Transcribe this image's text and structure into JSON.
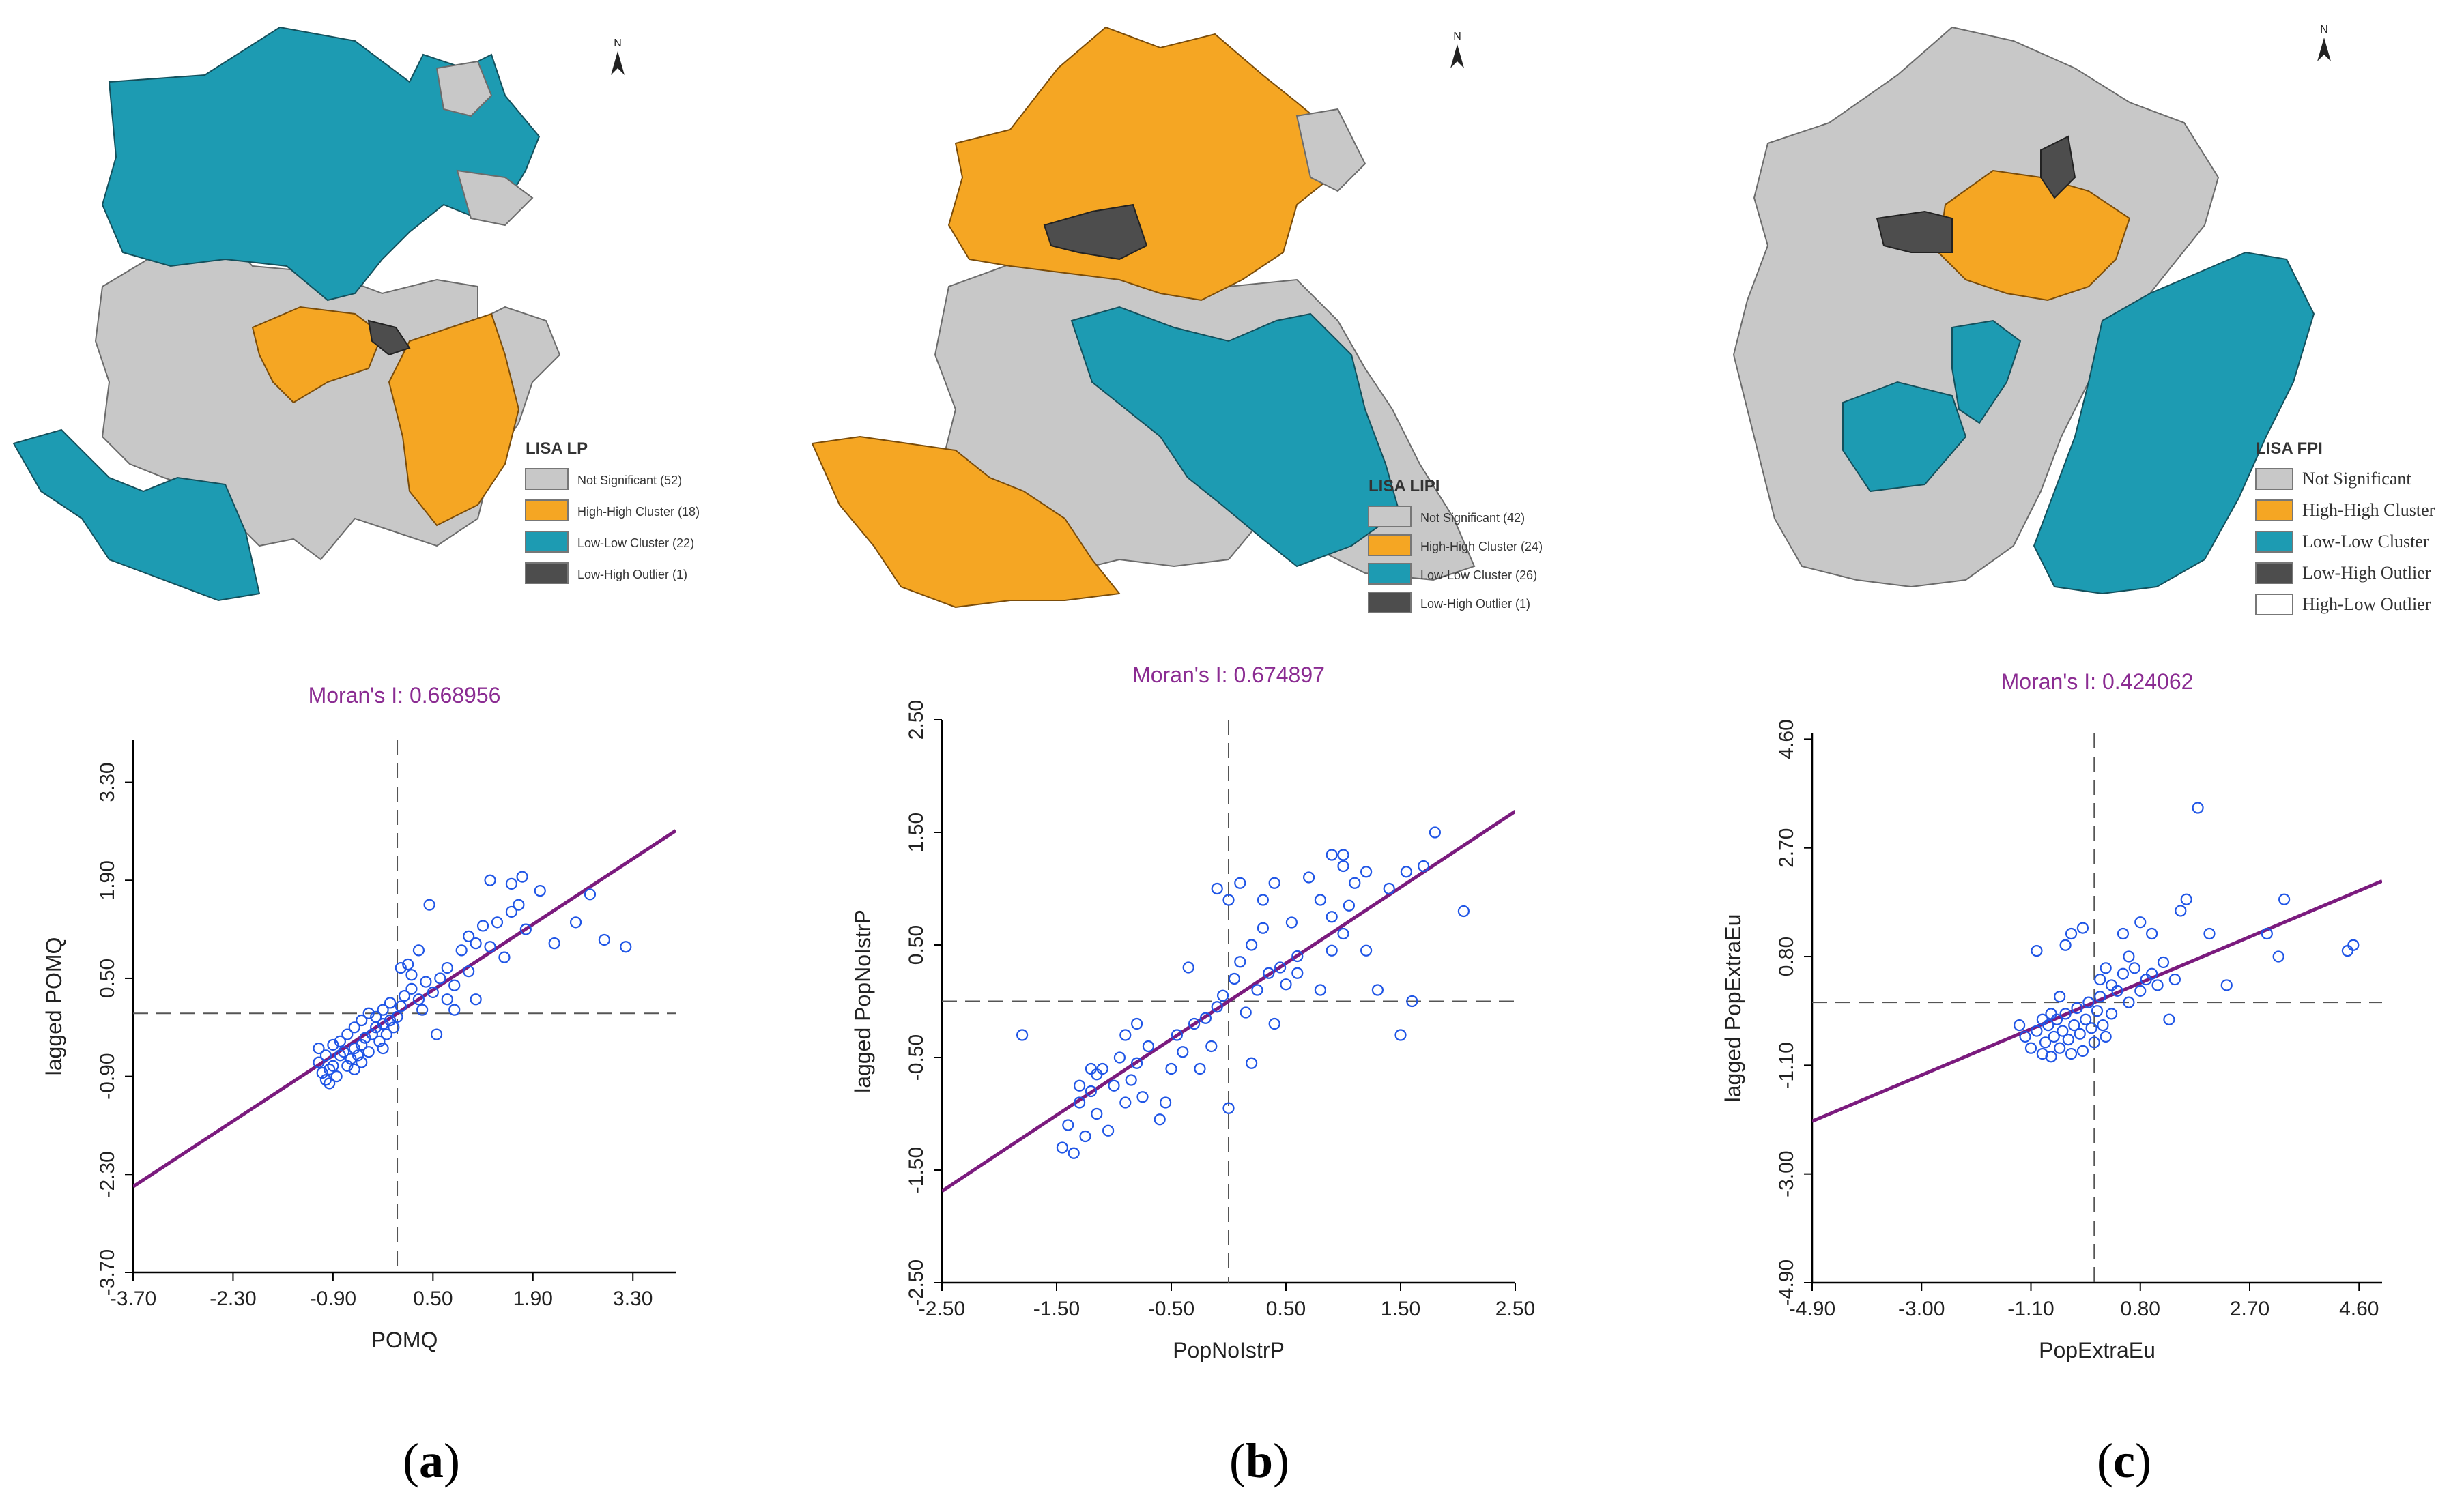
{
  "colors": {
    "not_significant": "#c8c8c8",
    "high_high": "#f5a623",
    "low_low": "#1d9bb2",
    "low_high": "#4d4d4d",
    "high_low": "#ffffff",
    "regression": "#7b1b7e",
    "points": "#1f55e6",
    "moran_text": "#8b2c92"
  },
  "panels": [
    {
      "label": "a",
      "map": {
        "legend_title": "LISA LP",
        "legend_items": [
          {
            "label": "Not Significant (52)",
            "color": "#c8c8c8"
          },
          {
            "label": "High-High Cluster (18)",
            "color": "#f5a623"
          },
          {
            "label": "Low-Low Cluster (22)",
            "color": "#1d9bb2"
          },
          {
            "label": "Low-High Outlier (1)",
            "color": "#4d4d4d"
          }
        ],
        "north": "N"
      },
      "chart_data": {
        "type": "scatter",
        "title": "Moran's I: 0.668956",
        "xlabel": "POMQ",
        "ylabel": "lagged POMQ",
        "xlim": [
          -3.7,
          3.9
        ],
        "ylim": [
          -3.7,
          3.9
        ],
        "xticks": [
          "-3.70",
          "-2.30",
          "-0.90",
          "0.50",
          "1.90",
          "3.30"
        ],
        "yticks": [
          "-3.70",
          "-2.30",
          "-0.90",
          "0.50",
          "1.90",
          "3.30"
        ],
        "slope": 0.668956,
        "points": [
          [
            -1.1,
            -0.7
          ],
          [
            -1.05,
            -0.85
          ],
          [
            -1.0,
            -0.95
          ],
          [
            -0.95,
            -0.8
          ],
          [
            -0.9,
            -0.75
          ],
          [
            -0.85,
            -0.9
          ],
          [
            -0.8,
            -0.6
          ],
          [
            -0.75,
            -0.55
          ],
          [
            -0.7,
            -0.75
          ],
          [
            -0.65,
            -0.65
          ],
          [
            -0.6,
            -0.5
          ],
          [
            -0.55,
            -0.6
          ],
          [
            -0.5,
            -0.45
          ],
          [
            -0.45,
            -0.35
          ],
          [
            -0.4,
            -0.55
          ],
          [
            -0.35,
            -0.3
          ],
          [
            -0.3,
            -0.2
          ],
          [
            -0.25,
            -0.4
          ],
          [
            -0.2,
            -0.15
          ],
          [
            -0.15,
            -0.3
          ],
          [
            -0.1,
            -0.1
          ],
          [
            -0.05,
            -0.2
          ],
          [
            0.0,
            -0.05
          ],
          [
            -1.0,
            -0.6
          ],
          [
            -0.9,
            -0.45
          ],
          [
            -0.7,
            -0.3
          ],
          [
            -0.6,
            -0.2
          ],
          [
            -0.5,
            -0.1
          ],
          [
            -0.4,
            0.0
          ],
          [
            -0.3,
            -0.05
          ],
          [
            -0.2,
            0.05
          ],
          [
            -0.1,
            0.15
          ],
          [
            0.05,
            0.1
          ],
          [
            0.1,
            0.25
          ],
          [
            0.2,
            0.35
          ],
          [
            0.3,
            0.2
          ],
          [
            0.4,
            0.45
          ],
          [
            0.5,
            0.3
          ],
          [
            0.6,
            0.5
          ],
          [
            0.7,
            0.65
          ],
          [
            0.8,
            0.4
          ],
          [
            0.9,
            0.9
          ],
          [
            1.0,
            1.1
          ],
          [
            1.1,
            1.0
          ],
          [
            1.2,
            1.25
          ],
          [
            1.3,
            0.95
          ],
          [
            1.4,
            1.3
          ],
          [
            1.5,
            0.8
          ],
          [
            1.6,
            1.45
          ],
          [
            1.7,
            1.55
          ],
          [
            1.8,
            1.2
          ],
          [
            2.0,
            1.75
          ],
          [
            2.2,
            1.0
          ],
          [
            2.5,
            1.3
          ],
          [
            2.9,
            1.05
          ],
          [
            3.2,
            0.95
          ],
          [
            0.55,
            -0.3
          ],
          [
            0.8,
            0.05
          ],
          [
            1.1,
            0.2
          ],
          [
            0.3,
            0.9
          ],
          [
            0.15,
            0.7
          ],
          [
            0.45,
            1.55
          ],
          [
            1.3,
            1.9
          ],
          [
            1.6,
            1.85
          ],
          [
            1.75,
            1.95
          ],
          [
            2.7,
            1.7
          ],
          [
            -0.8,
            -0.4
          ],
          [
            -1.1,
            -0.5
          ],
          [
            -0.6,
            -0.8
          ],
          [
            -0.2,
            -0.5
          ],
          [
            0.2,
            0.55
          ],
          [
            0.05,
            0.65
          ],
          [
            -0.95,
            -1.0
          ],
          [
            -0.5,
            -0.7
          ],
          [
            0.7,
            0.2
          ],
          [
            1.0,
            0.6
          ],
          [
            0.35,
            0.05
          ]
        ]
      }
    },
    {
      "label": "b",
      "map": {
        "legend_title": "LISA LIPI",
        "legend_items": [
          {
            "label": "Not Significant (42)",
            "color": "#c8c8c8"
          },
          {
            "label": "High-High Cluster (24)",
            "color": "#f5a623"
          },
          {
            "label": "Low-Low Cluster (26)",
            "color": "#1d9bb2"
          },
          {
            "label": "Low-High Outlier (1)",
            "color": "#4d4d4d"
          }
        ],
        "north": "N"
      },
      "chart_data": {
        "type": "scatter",
        "title": "Moran's I: 0.674897",
        "xlabel": "PopNoIstrP",
        "ylabel": "lagged PopNoIstrP",
        "xlim": [
          -2.5,
          2.5
        ],
        "ylim": [
          -2.5,
          2.5
        ],
        "xticks": [
          "-2.50",
          "-1.50",
          "-0.50",
          "0.50",
          "1.50",
          "2.50"
        ],
        "yticks": [
          "-2.50",
          "-1.50",
          "-0.50",
          "0.50",
          "1.50",
          "2.50"
        ],
        "slope": 0.674897,
        "points": [
          [
            -1.8,
            -0.3
          ],
          [
            -1.45,
            -1.3
          ],
          [
            -1.4,
            -1.1
          ],
          [
            -1.35,
            -1.35
          ],
          [
            -1.3,
            -0.9
          ],
          [
            -1.25,
            -1.2
          ],
          [
            -1.2,
            -0.8
          ],
          [
            -1.15,
            -1.0
          ],
          [
            -1.1,
            -0.6
          ],
          [
            -1.05,
            -1.15
          ],
          [
            -1.0,
            -0.75
          ],
          [
            -0.95,
            -0.5
          ],
          [
            -0.9,
            -0.9
          ],
          [
            -0.85,
            -0.7
          ],
          [
            -0.8,
            -0.55
          ],
          [
            -0.75,
            -0.85
          ],
          [
            -0.7,
            -0.4
          ],
          [
            -0.6,
            -1.05
          ],
          [
            -0.55,
            -0.9
          ],
          [
            -0.5,
            -0.6
          ],
          [
            -0.45,
            -0.3
          ],
          [
            -0.4,
            -0.45
          ],
          [
            -0.35,
            0.3
          ],
          [
            -0.3,
            -0.2
          ],
          [
            -0.25,
            -0.6
          ],
          [
            -0.2,
            -0.15
          ],
          [
            -0.15,
            -0.4
          ],
          [
            -0.1,
            -0.05
          ],
          [
            -0.05,
            0.05
          ],
          [
            0.0,
            -0.95
          ],
          [
            0.05,
            0.2
          ],
          [
            0.1,
            0.35
          ],
          [
            0.15,
            -0.1
          ],
          [
            0.2,
            0.5
          ],
          [
            0.25,
            0.1
          ],
          [
            0.3,
            0.65
          ],
          [
            0.35,
            0.25
          ],
          [
            0.4,
            -0.2
          ],
          [
            0.45,
            0.3
          ],
          [
            0.5,
            0.15
          ],
          [
            0.55,
            0.7
          ],
          [
            0.6,
            0.4
          ],
          [
            0.7,
            1.1
          ],
          [
            0.8,
            0.9
          ],
          [
            0.9,
            1.3
          ],
          [
            1.0,
            1.2
          ],
          [
            1.05,
            0.85
          ],
          [
            1.1,
            1.05
          ],
          [
            1.2,
            1.15
          ],
          [
            1.3,
            0.1
          ],
          [
            1.4,
            1.0
          ],
          [
            1.5,
            -0.3
          ],
          [
            1.55,
            1.15
          ],
          [
            1.6,
            0.0
          ],
          [
            1.7,
            1.2
          ],
          [
            1.8,
            1.5
          ],
          [
            2.05,
            0.8
          ],
          [
            -0.1,
            1.0
          ],
          [
            0.1,
            1.05
          ],
          [
            0.0,
            0.9
          ],
          [
            0.2,
            -0.55
          ],
          [
            0.4,
            1.05
          ],
          [
            0.8,
            0.1
          ],
          [
            0.9,
            0.75
          ],
          [
            1.0,
            1.3
          ],
          [
            1.2,
            0.45
          ],
          [
            -1.3,
            -0.75
          ],
          [
            -1.2,
            -0.6
          ],
          [
            -0.9,
            -0.3
          ],
          [
            -0.8,
            -0.2
          ],
          [
            -1.15,
            -0.65
          ],
          [
            0.6,
            0.25
          ],
          [
            0.9,
            0.45
          ],
          [
            1.0,
            0.6
          ],
          [
            0.3,
            0.9
          ]
        ]
      }
    },
    {
      "label": "c",
      "map": {
        "legend_title": "LISA FPI",
        "legend_items": [
          {
            "label": "Not Significant",
            "color": "#c8c8c8"
          },
          {
            "label": "High-High Cluster",
            "color": "#f5a623"
          },
          {
            "label": "Low-Low Cluster",
            "color": "#1d9bb2"
          },
          {
            "label": "Low-High Outlier",
            "color": "#4d4d4d"
          },
          {
            "label": "High-Low Outlier",
            "color": "#ffffff"
          }
        ],
        "north": "N"
      },
      "chart_data": {
        "type": "scatter",
        "title": "Moran's I: 0.424062",
        "xlabel": "PopExtraEu",
        "ylabel": "lagged PopExtraEu",
        "xlim": [
          -4.9,
          5.0
        ],
        "ylim": [
          -4.9,
          4.7
        ],
        "xticks": [
          "-4.90",
          "-3.00",
          "-1.10",
          "0.80",
          "2.70",
          "4.60"
        ],
        "yticks": [
          "-4.90",
          "-3.00",
          "-1.10",
          "0.80",
          "2.70",
          "4.60"
        ],
        "slope": 0.424062,
        "points": [
          [
            -1.2,
            -0.6
          ],
          [
            -1.1,
            -0.8
          ],
          [
            -1.0,
            -0.5
          ],
          [
            -0.9,
            -0.9
          ],
          [
            -0.85,
            -0.7
          ],
          [
            -0.8,
            -0.4
          ],
          [
            -0.75,
            -0.95
          ],
          [
            -0.7,
            -0.6
          ],
          [
            -0.65,
            -0.3
          ],
          [
            -0.6,
            -0.8
          ],
          [
            -0.55,
            -0.5
          ],
          [
            -0.5,
            -0.2
          ],
          [
            -0.45,
            -0.65
          ],
          [
            -0.4,
            -0.9
          ],
          [
            -0.35,
            -0.4
          ],
          [
            -0.3,
            -0.1
          ],
          [
            -0.25,
            -0.55
          ],
          [
            -0.2,
            -0.85
          ],
          [
            -0.15,
            -0.3
          ],
          [
            -0.1,
            0.0
          ],
          [
            -0.05,
            -0.45
          ],
          [
            0.0,
            -0.7
          ],
          [
            0.05,
            -0.15
          ],
          [
            0.1,
            0.1
          ],
          [
            0.15,
            -0.4
          ],
          [
            0.2,
            -0.6
          ],
          [
            0.3,
            0.3
          ],
          [
            0.4,
            0.2
          ],
          [
            0.5,
            0.5
          ],
          [
            0.6,
            0.0
          ],
          [
            0.7,
            0.6
          ],
          [
            0.8,
            0.2
          ],
          [
            0.9,
            0.4
          ],
          [
            1.0,
            0.5
          ],
          [
            1.1,
            0.3
          ],
          [
            1.2,
            0.7
          ],
          [
            1.4,
            0.4
          ],
          [
            1.5,
            1.6
          ],
          [
            1.6,
            1.8
          ],
          [
            2.0,
            1.2
          ],
          [
            2.3,
            0.3
          ],
          [
            3.0,
            1.2
          ],
          [
            3.2,
            0.8
          ],
          [
            3.3,
            1.8
          ],
          [
            4.4,
            0.9
          ],
          [
            4.5,
            1.0
          ],
          [
            0.5,
            1.2
          ],
          [
            0.8,
            1.4
          ],
          [
            1.0,
            1.2
          ],
          [
            -1.0,
            0.9
          ],
          [
            -0.5,
            1.0
          ],
          [
            -0.4,
            1.2
          ],
          [
            -0.2,
            1.3
          ],
          [
            1.8,
            3.4
          ],
          [
            -0.9,
            -0.3
          ],
          [
            -0.6,
            0.1
          ],
          [
            0.1,
            0.4
          ],
          [
            0.3,
            -0.2
          ],
          [
            0.6,
            0.8
          ],
          [
            1.3,
            -0.3
          ],
          [
            -1.3,
            -0.4
          ],
          [
            -0.75,
            -0.2
          ],
          [
            0.2,
            0.6
          ]
        ]
      }
    }
  ]
}
